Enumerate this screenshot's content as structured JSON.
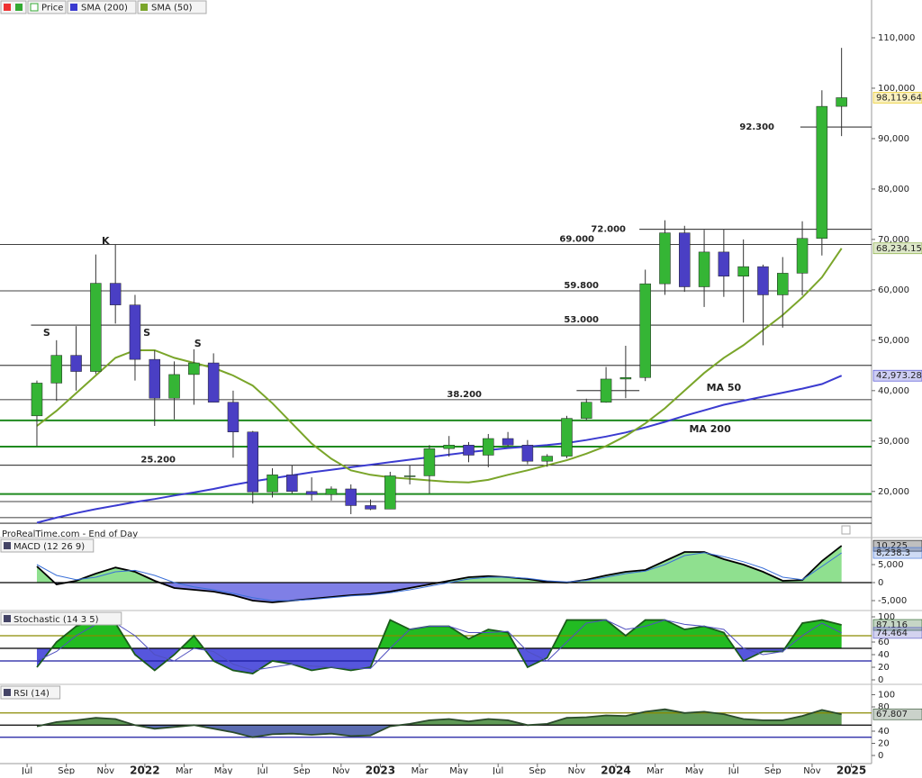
{
  "chart_data": [
    {
      "type": "candlestick",
      "price_label": "Price",
      "source": "ProRealTime.com - End of Day",
      "x": [
        0.5,
        1.5,
        2.5,
        3.5,
        4.5,
        5.5,
        6.5,
        7.5,
        8.5,
        9.5,
        10.5,
        11.5,
        12.5,
        13.5,
        14.5,
        15.5,
        16.5,
        17.5,
        18.5,
        19.5,
        20.5,
        21.5,
        22.5,
        23.5,
        24.5,
        25.5,
        26.5,
        27.5,
        28.5,
        29.5,
        30.5,
        31.5,
        32.5,
        33.5,
        34.5,
        35.5,
        36.5,
        37.5,
        38.5,
        39.5,
        40.5,
        41.5
      ],
      "open": [
        35000,
        41500,
        47000,
        43800,
        61300,
        57000,
        46200,
        38500,
        43200,
        45500,
        37700,
        31800,
        19900,
        23300,
        20000,
        19400,
        20500,
        17200,
        16500,
        23100,
        23100,
        28500,
        29200,
        27200,
        30500,
        29200,
        26000,
        27000,
        34500,
        37700,
        42300,
        42600,
        61200,
        71300,
        60600,
        67500,
        62700,
        64600,
        59000,
        63300,
        70200,
        96400
      ],
      "high": [
        42000,
        50000,
        52800,
        67000,
        69000,
        59000,
        48000,
        45800,
        48200,
        47400,
        40000,
        32000,
        24600,
        25200,
        22800,
        21000,
        21400,
        18400,
        23900,
        25200,
        29200,
        31000,
        29800,
        31400,
        31800,
        30200,
        27400,
        35000,
        38400,
        44700,
        48900,
        64000,
        73800,
        72700,
        71900,
        72000,
        70000,
        65000,
        66500,
        73600,
        99600,
        108000
      ],
      "low": [
        29000,
        38000,
        40000,
        43300,
        53300,
        42000,
        33000,
        34300,
        37200,
        37700,
        26700,
        17600,
        18800,
        19600,
        18200,
        18200,
        15500,
        16300,
        16500,
        21400,
        19600,
        26900,
        25800,
        24800,
        28900,
        25400,
        24900,
        26600,
        34100,
        37600,
        38500,
        41900,
        59000,
        59600,
        56600,
        58600,
        53500,
        49000,
        52500,
        58900,
        66800,
        90500
      ],
      "close": [
        41500,
        47000,
        43800,
        61300,
        57000,
        46200,
        38500,
        43200,
        45500,
        37700,
        31800,
        19900,
        23300,
        20000,
        19400,
        20500,
        17200,
        16500,
        23100,
        23100,
        28500,
        29200,
        27200,
        30500,
        29200,
        26000,
        27000,
        34500,
        37700,
        42300,
        42600,
        61200,
        71300,
        60600,
        67500,
        62700,
        64600,
        59000,
        63300,
        70200,
        96400,
        98119.64
      ],
      "last_label": "98,119.64",
      "up_color": "#35b535",
      "down_color": "#4a3fc4",
      "series": [
        {
          "name": "SMA (200)",
          "color": "#3b3bd0",
          "last_label": "42,973.28",
          "values": [
            13800,
            14800,
            15700,
            16500,
            17200,
            17900,
            18500,
            19200,
            19800,
            20500,
            21300,
            22000,
            22600,
            23200,
            23800,
            24300,
            24800,
            25300,
            25800,
            26300,
            26800,
            27300,
            27800,
            28200,
            28600,
            28900,
            29200,
            29600,
            30200,
            30900,
            31700,
            32700,
            33800,
            35000,
            36100,
            37200,
            38000,
            38800,
            39600,
            40400,
            41300,
            42973.28
          ]
        },
        {
          "name": "SMA (50)",
          "color": "#7aa52a",
          "last_label": "68,234.15",
          "values": [
            33000,
            36000,
            39500,
            43000,
            46500,
            48000,
            48000,
            46500,
            45500,
            44500,
            43000,
            41000,
            37500,
            33500,
            29500,
            26500,
            24200,
            23300,
            22800,
            22500,
            22200,
            21900,
            21800,
            22300,
            23300,
            24200,
            25200,
            26200,
            27500,
            29000,
            31000,
            33500,
            36500,
            40000,
            43500,
            46500,
            49000,
            52000,
            55000,
            58500,
            62500,
            68234.15
          ]
        }
      ],
      "xlim": [
        -1.38,
        43.03
      ],
      "xticks": [
        {
          "value": 0,
          "label": "Jul"
        },
        {
          "value": 2,
          "label": "Sep"
        },
        {
          "value": 4,
          "label": "Nov"
        },
        {
          "value": 6,
          "label": "2022"
        },
        {
          "value": 8,
          "label": "Mar"
        },
        {
          "value": 10,
          "label": "May"
        },
        {
          "value": 12,
          "label": "Jul"
        },
        {
          "value": 14,
          "label": "Sep"
        },
        {
          "value": 16,
          "label": "Nov"
        },
        {
          "value": 18,
          "label": "2023"
        },
        {
          "value": 20,
          "label": "Mar"
        },
        {
          "value": 22,
          "label": "May"
        },
        {
          "value": 24,
          "label": "Jul"
        },
        {
          "value": 26,
          "label": "Sep"
        },
        {
          "value": 28,
          "label": "Nov"
        },
        {
          "value": 30,
          "label": "2024"
        },
        {
          "value": 32,
          "label": "Mar"
        },
        {
          "value": 34,
          "label": "May"
        },
        {
          "value": 36,
          "label": "Jul"
        },
        {
          "value": 38,
          "label": "Sep"
        },
        {
          "value": 40,
          "label": "Nov"
        },
        {
          "value": 42,
          "label": "2025"
        }
      ],
      "ylim": [
        12100,
        117500
      ],
      "yticks": [
        {
          "value": 20000,
          "label": "20,000"
        },
        {
          "value": 30000,
          "label": "30,000"
        },
        {
          "value": 40000,
          "label": "40,000"
        },
        {
          "value": 50000,
          "label": "50,000"
        },
        {
          "value": 60000,
          "label": "60,000"
        },
        {
          "value": 70000,
          "label": "70,000"
        },
        {
          "value": 80000,
          "label": "80,000"
        },
        {
          "value": 90000,
          "label": "90,000"
        },
        {
          "value": 100000,
          "label": "100,000"
        },
        {
          "value": 110000,
          "label": "110,000"
        }
      ],
      "levels": [
        {
          "value": 92300,
          "label": "92.300",
          "from": 39.4,
          "color": "#000000"
        },
        {
          "value": 72000,
          "label": "72.000",
          "from": 31.2,
          "color": "#000000"
        },
        {
          "value": 69000,
          "label": "69.000",
          "color": "#000000"
        },
        {
          "value": 59800,
          "label": "59.800",
          "color": "#000000"
        },
        {
          "value": 53000,
          "label": "53.000",
          "from": 0.2,
          "color": "#000000"
        },
        {
          "value": 45000,
          "color": "#000000"
        },
        {
          "value": 40000,
          "from": 28.0,
          "to": 31.2,
          "color": "#000000"
        },
        {
          "value": 38200,
          "label": "38.200",
          "color": "#000000"
        },
        {
          "value": 34100,
          "color": "#1f8a1f"
        },
        {
          "value": 28900,
          "color": "#1f8a1f"
        },
        {
          "value": 25200,
          "label": "25.200",
          "color": "#000000"
        },
        {
          "value": 19500,
          "color": "#1f8a1f"
        },
        {
          "value": 18000,
          "color": "#000000"
        },
        {
          "value": 14800,
          "color": "#000000"
        },
        {
          "value": 13700,
          "color": "#000000"
        }
      ],
      "annotations": [
        {
          "text": "S",
          "x": 1.0,
          "y": 51400,
          "color": "#1f8a1f"
        },
        {
          "text": "K",
          "x": 4.0,
          "y": 69600,
          "color": "#1f8a1f"
        },
        {
          "text": "S",
          "x": 6.1,
          "y": 51400,
          "color": "#1f8a1f"
        },
        {
          "text": "S",
          "x": 8.7,
          "y": 49300,
          "color": "#1f8a1f"
        },
        {
          "text": "MA 50",
          "x": 35.5,
          "y": 40500,
          "color": "#d42020"
        },
        {
          "text": "MA 200",
          "x": 34.8,
          "y": 32300,
          "color": "#2a2ab8"
        }
      ]
    },
    {
      "type": "indicator",
      "title": "MACD (12 26 9)",
      "ylim": [
        -7500,
        12250
      ],
      "yticks": [
        {
          "value": -5000,
          "label": "-5,000"
        },
        0,
        {
          "value": 5000,
          "label": "5,000"
        }
      ],
      "fill_base": 0,
      "fill_colors": {
        "above": "#8fe08f",
        "below": "#7f7fe6"
      },
      "levels": [
        {
          "value": 0,
          "color": "#000000"
        }
      ],
      "series": [
        {
          "color": "#000000",
          "fill": true,
          "last_label": "10,225",
          "values": [
            4500,
            -500,
            500,
            2500,
            4200,
            3000,
            500,
            -1500,
            -2000,
            -2500,
            -3500,
            -5000,
            -5500,
            -5000,
            -4500,
            -4000,
            -3500,
            -3200,
            -2500,
            -1500,
            -500,
            500,
            1500,
            1800,
            1500,
            1000,
            200,
            0,
            800,
            2000,
            3000,
            3500,
            6000,
            8500,
            8500,
            6500,
            5000,
            3000,
            500,
            700,
            6000,
            10225
          ]
        },
        {
          "color": "#3a6fd8",
          "last_label": "8,238.3",
          "values": [
            5000,
            2000,
            800,
            1500,
            3000,
            3400,
            2000,
            0,
            -1200,
            -2000,
            -3000,
            -4200,
            -5000,
            -5000,
            -4700,
            -4200,
            -3700,
            -3400,
            -2800,
            -2000,
            -1000,
            0,
            1000,
            1500,
            1500,
            1200,
            500,
            200,
            600,
            1500,
            2500,
            3200,
            5000,
            7500,
            8300,
            7200,
            5800,
            4000,
            1500,
            800,
            4500,
            8238.3
          ]
        }
      ]
    },
    {
      "type": "indicator",
      "title": "Stochastic (14 3 5)",
      "ylim": [
        -4.3,
        108.6
      ],
      "yticks": [
        0,
        20,
        40,
        60,
        100
      ],
      "fill_base": 50,
      "fill_colors": {
        "above": "#22bb22",
        "below": "#5656dd"
      },
      "levels": [
        {
          "value": 70,
          "color": "#8a8a00"
        },
        {
          "value": 50,
          "color": "#000000"
        },
        {
          "value": 30,
          "color": "#1a1aa0"
        }
      ],
      "series": [
        {
          "color": "#1a5a1a",
          "fill": true,
          "last_label": "87.116",
          "values": [
            20,
            60,
            85,
            95,
            90,
            40,
            15,
            40,
            70,
            30,
            15,
            10,
            30,
            25,
            15,
            20,
            15,
            20,
            95,
            80,
            85,
            85,
            65,
            80,
            75,
            20,
            35,
            95,
            95,
            95,
            70,
            95,
            95,
            80,
            85,
            75,
            30,
            45,
            45,
            90,
            95,
            87.116
          ]
        },
        {
          "color": "#5050c0",
          "last_label": "74.464",
          "values": [
            30,
            45,
            70,
            88,
            90,
            70,
            40,
            30,
            50,
            45,
            25,
            15,
            20,
            25,
            22,
            20,
            18,
            18,
            50,
            80,
            85,
            85,
            75,
            75,
            77,
            45,
            30,
            60,
            90,
            95,
            80,
            85,
            95,
            88,
            85,
            80,
            50,
            40,
            45,
            70,
            90,
            74.464
          ]
        }
      ]
    },
    {
      "type": "indicator",
      "title": "RSI (14)",
      "ylim": [
        -10.4,
        115.6
      ],
      "yticks": [
        0,
        20,
        40,
        80,
        100
      ],
      "fill_base": 50,
      "fill_colors": {
        "above": "#5f9a55",
        "below": "#5a6bb0"
      },
      "levels": [
        {
          "value": 70,
          "color": "#8a8a00"
        },
        {
          "value": 50,
          "color": "#000000"
        },
        {
          "value": 30,
          "color": "#1a1aa0"
        }
      ],
      "series": [
        {
          "color": "#2a4a2a",
          "fill": true,
          "last_label": "67.807",
          "values": [
            48,
            55,
            58,
            62,
            60,
            50,
            44,
            47,
            50,
            44,
            38,
            30,
            35,
            36,
            34,
            36,
            32,
            33,
            48,
            52,
            58,
            60,
            56,
            60,
            58,
            50,
            52,
            62,
            63,
            66,
            65,
            72,
            76,
            70,
            72,
            68,
            60,
            58,
            58,
            65,
            75,
            67.807
          ]
        }
      ]
    }
  ]
}
